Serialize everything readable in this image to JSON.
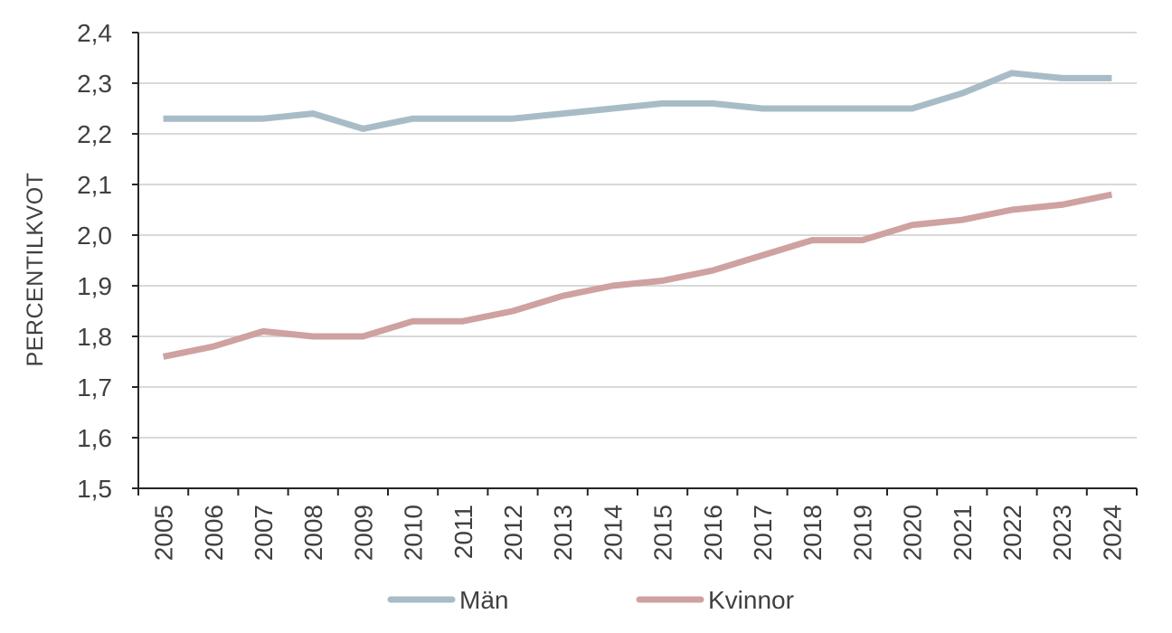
{
  "chart_data": {
    "type": "line",
    "ylabel": "PERCENTILKVOT",
    "ylim": [
      1.5,
      2.4
    ],
    "y_tick_labels": [
      "1,5",
      "1,6",
      "1,7",
      "1,8",
      "1,9",
      "2,0",
      "2,1",
      "2,2",
      "2,3",
      "2,4"
    ],
    "categories": [
      "2005",
      "2006",
      "2007",
      "2008",
      "2009",
      "2010",
      "2011",
      "2012",
      "2013",
      "2014",
      "2015",
      "2016",
      "2017",
      "2018",
      "2019",
      "2020",
      "2021",
      "2022",
      "2023",
      "2024"
    ],
    "grid": "horizontal",
    "legend_position": "bottom",
    "series": [
      {
        "name": "Män",
        "color": "#a8bcc8",
        "values": [
          2.23,
          2.23,
          2.23,
          2.24,
          2.21,
          2.23,
          2.23,
          2.23,
          2.24,
          2.25,
          2.26,
          2.26,
          2.25,
          2.25,
          2.25,
          2.25,
          2.28,
          2.32,
          2.31,
          2.31
        ]
      },
      {
        "name": "Kvinnor",
        "color": "#cfa1a1",
        "values": [
          1.76,
          1.78,
          1.81,
          1.8,
          1.8,
          1.83,
          1.83,
          1.85,
          1.88,
          1.9,
          1.91,
          1.93,
          1.96,
          1.99,
          1.99,
          2.02,
          2.03,
          2.05,
          2.06,
          2.08
        ]
      }
    ]
  }
}
